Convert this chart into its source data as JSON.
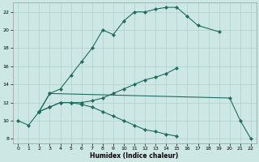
{
  "xlabel": "Humidex (Indice chaleur)",
  "background_color": "#cde8e4",
  "grid_color": "#aed0cb",
  "line_color": "#1e6b60",
  "xlim": [
    -0.5,
    22.5
  ],
  "ylim": [
    7.5,
    23.0
  ],
  "xticks": [
    0,
    1,
    2,
    3,
    4,
    5,
    6,
    7,
    8,
    9,
    10,
    11,
    12,
    13,
    14,
    15,
    16,
    17,
    18,
    19,
    20,
    21,
    22
  ],
  "yticks": [
    8,
    10,
    12,
    14,
    16,
    18,
    20,
    22
  ],
  "series": [
    {
      "x": [
        0,
        1,
        2,
        3,
        4,
        5,
        6,
        7,
        8,
        9,
        10,
        11,
        12,
        13,
        14,
        15,
        16,
        17,
        19
      ],
      "y": [
        10,
        9.5,
        11,
        13,
        13.5,
        15,
        16.5,
        18,
        20,
        19.5,
        21,
        22,
        22,
        22.3,
        22.5,
        22.5,
        21.5,
        20.5,
        19.8
      ]
    },
    {
      "x": [
        2,
        3,
        20,
        21,
        22
      ],
      "y": [
        11,
        13,
        12.5,
        10,
        8
      ]
    },
    {
      "x": [
        2,
        3,
        4,
        5,
        6,
        7,
        8,
        9,
        10,
        11,
        12,
        13,
        14,
        15
      ],
      "y": [
        11,
        11.5,
        12,
        12,
        12,
        12.2,
        12.5,
        13,
        13.5,
        14,
        14.5,
        14.8,
        15.2,
        15.8
      ]
    },
    {
      "x": [
        2,
        3,
        4,
        5,
        6,
        7,
        8,
        9,
        10,
        11,
        12,
        13,
        14,
        15
      ],
      "y": [
        11,
        11.5,
        12,
        12,
        11.8,
        11.5,
        11,
        10.5,
        10,
        9.5,
        9,
        8.8,
        8.5,
        8.3
      ]
    }
  ]
}
